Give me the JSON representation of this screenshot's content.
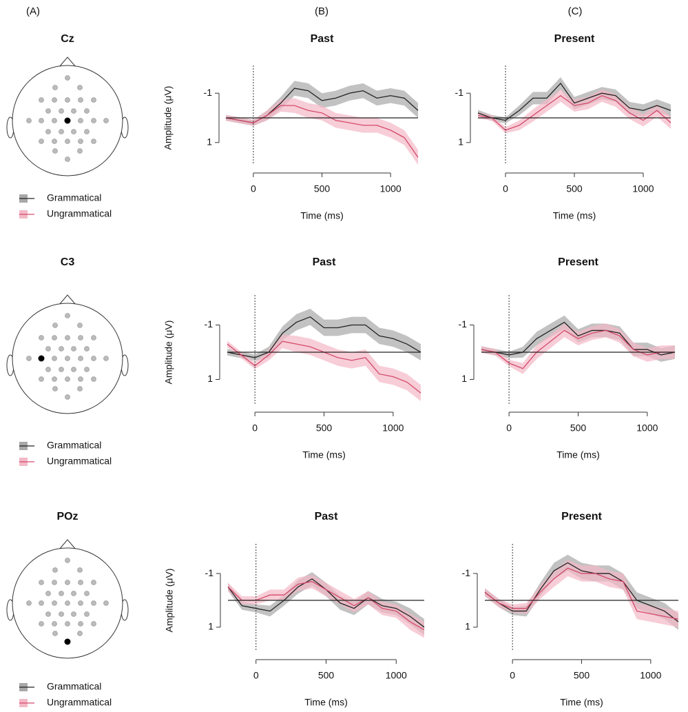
{
  "panels": [
    "(A)",
    "(B)",
    "(C)"
  ],
  "electrodes": [
    "Cz",
    "C3",
    "POz"
  ],
  "chart_data": [
    {
      "type": "line",
      "title": "Past",
      "xlabel": "Time (ms)",
      "ylabel": "Amplitude (μV)",
      "x": [
        -200,
        -100,
        0,
        100,
        200,
        300,
        400,
        500,
        600,
        700,
        800,
        900,
        1000,
        1100,
        1200
      ],
      "xlim": [
        -200,
        1200
      ],
      "xticks": [
        0,
        500,
        1000
      ],
      "ylim": [
        1.9,
        -1.9
      ],
      "yticks": [
        -1,
        1
      ],
      "series": [
        {
          "name": "Grammatical",
          "color": "#222222",
          "band_color": "#a8a8a8",
          "values": [
            0.0,
            0.1,
            0.2,
            -0.1,
            -0.6,
            -1.2,
            -1.1,
            -0.7,
            -0.8,
            -1.0,
            -1.1,
            -0.8,
            -0.9,
            -0.8,
            -0.3
          ],
          "errors": [
            0.12,
            0.12,
            0.12,
            0.2,
            0.25,
            0.3,
            0.3,
            0.3,
            0.3,
            0.3,
            0.3,
            0.3,
            0.3,
            0.3,
            0.3
          ]
        },
        {
          "name": "Ungrammatical",
          "color": "#d44a6a",
          "band_color": "#f3b8c6",
          "values": [
            0.0,
            0.1,
            0.2,
            -0.1,
            -0.5,
            -0.5,
            -0.3,
            -0.2,
            0.1,
            0.2,
            0.3,
            0.3,
            0.5,
            0.8,
            1.6
          ],
          "errors": [
            0.12,
            0.12,
            0.12,
            0.2,
            0.25,
            0.3,
            0.3,
            0.3,
            0.3,
            0.3,
            0.3,
            0.3,
            0.3,
            0.3,
            0.3
          ]
        }
      ]
    },
    {
      "type": "line",
      "title": "Present",
      "xlabel": "Time (ms)",
      "x": [
        -200,
        -100,
        0,
        100,
        200,
        300,
        400,
        500,
        600,
        700,
        800,
        900,
        1000,
        1100,
        1200
      ],
      "xlim": [
        -200,
        1200
      ],
      "xticks": [
        0,
        500,
        1000
      ],
      "ylim": [
        1.9,
        -1.9
      ],
      "yticks": [
        -1,
        1
      ],
      "series": [
        {
          "name": "Grammatical",
          "color": "#222222",
          "band_color": "#a8a8a8",
          "values": [
            -0.2,
            0.0,
            0.1,
            -0.3,
            -0.8,
            -0.8,
            -1.4,
            -0.6,
            -0.8,
            -1.0,
            -0.9,
            -0.4,
            -0.3,
            -0.5,
            -0.3
          ],
          "errors": [
            0.12,
            0.12,
            0.12,
            0.2,
            0.25,
            0.25,
            0.25,
            0.25,
            0.25,
            0.25,
            0.25,
            0.25,
            0.25,
            0.25,
            0.25
          ]
        },
        {
          "name": "Ungrammatical",
          "color": "#d44a6a",
          "band_color": "#f3b8c6",
          "values": [
            -0.1,
            0.0,
            0.5,
            0.3,
            -0.1,
            -0.5,
            -0.9,
            -0.5,
            -0.6,
            -0.9,
            -0.7,
            -0.2,
            0.1,
            -0.3,
            0.2
          ],
          "errors": [
            0.12,
            0.12,
            0.12,
            0.2,
            0.25,
            0.25,
            0.25,
            0.25,
            0.25,
            0.25,
            0.25,
            0.25,
            0.25,
            0.25,
            0.25
          ]
        }
      ]
    },
    {
      "type": "line",
      "title": "Past",
      "xlabel": "Time (ms)",
      "ylabel": "Amplitude (μV)",
      "x": [
        -200,
        -100,
        0,
        100,
        200,
        300,
        400,
        500,
        600,
        700,
        800,
        900,
        1000,
        1100,
        1200
      ],
      "xlim": [
        -200,
        1200
      ],
      "xticks": [
        0,
        500,
        1000
      ],
      "ylim": [
        1.9,
        -1.9
      ],
      "yticks": [
        -1,
        1
      ],
      "series": [
        {
          "name": "Grammatical",
          "color": "#222222",
          "band_color": "#a8a8a8",
          "values": [
            0.0,
            0.1,
            0.2,
            0.0,
            -0.7,
            -1.1,
            -1.3,
            -0.9,
            -0.9,
            -1.0,
            -1.0,
            -0.6,
            -0.5,
            -0.3,
            0.0
          ],
          "errors": [
            0.12,
            0.12,
            0.12,
            0.2,
            0.25,
            0.3,
            0.3,
            0.3,
            0.3,
            0.3,
            0.3,
            0.3,
            0.3,
            0.3,
            0.3
          ]
        },
        {
          "name": "Ungrammatical",
          "color": "#d44a6a",
          "band_color": "#f3b8c6",
          "values": [
            -0.3,
            0.1,
            0.5,
            0.1,
            -0.4,
            -0.3,
            -0.2,
            0.0,
            0.2,
            0.3,
            0.2,
            0.8,
            0.9,
            1.1,
            1.5
          ],
          "errors": [
            0.12,
            0.12,
            0.12,
            0.2,
            0.25,
            0.3,
            0.3,
            0.3,
            0.3,
            0.3,
            0.3,
            0.3,
            0.3,
            0.3,
            0.3
          ]
        }
      ]
    },
    {
      "type": "line",
      "title": "Present",
      "xlabel": "Time (ms)",
      "x": [
        -200,
        -100,
        0,
        100,
        200,
        300,
        400,
        500,
        600,
        700,
        800,
        900,
        1000,
        1100,
        1200
      ],
      "xlim": [
        -200,
        1200
      ],
      "xticks": [
        0,
        500,
        1000
      ],
      "ylim": [
        1.9,
        -1.9
      ],
      "yticks": [
        -1,
        1
      ],
      "series": [
        {
          "name": "Grammatical",
          "color": "#222222",
          "band_color": "#a8a8a8",
          "values": [
            -0.1,
            0.0,
            0.1,
            0.0,
            -0.5,
            -0.8,
            -1.1,
            -0.6,
            -0.8,
            -0.8,
            -0.7,
            -0.1,
            -0.1,
            0.1,
            0.0
          ],
          "errors": [
            0.12,
            0.12,
            0.12,
            0.2,
            0.25,
            0.25,
            0.25,
            0.25,
            0.25,
            0.25,
            0.25,
            0.25,
            0.25,
            0.25,
            0.25
          ]
        },
        {
          "name": "Ungrammatical",
          "color": "#d44a6a",
          "band_color": "#f3b8c6",
          "values": [
            -0.1,
            0.0,
            0.4,
            0.6,
            0.0,
            -0.4,
            -0.8,
            -0.5,
            -0.7,
            -0.8,
            -0.6,
            -0.1,
            0.1,
            0.0,
            0.0
          ],
          "errors": [
            0.12,
            0.12,
            0.12,
            0.2,
            0.25,
            0.25,
            0.25,
            0.25,
            0.25,
            0.25,
            0.25,
            0.25,
            0.25,
            0.25,
            0.25
          ]
        }
      ]
    },
    {
      "type": "line",
      "title": "Past",
      "xlabel": "Time (ms)",
      "ylabel": "Amplitude (μV)",
      "x": [
        -200,
        -100,
        0,
        100,
        200,
        300,
        400,
        500,
        600,
        700,
        800,
        900,
        1000,
        1100,
        1200
      ],
      "xlim": [
        -200,
        1200
      ],
      "xticks": [
        0,
        500,
        1000
      ],
      "ylim": [
        1.9,
        -1.9
      ],
      "yticks": [
        -1,
        1
      ],
      "series": [
        {
          "name": "Grammatical",
          "color": "#222222",
          "band_color": "#a8a8a8",
          "values": [
            -0.5,
            0.2,
            0.3,
            0.4,
            0.0,
            -0.5,
            -0.8,
            -0.4,
            0.1,
            0.3,
            -0.1,
            0.2,
            0.3,
            0.6,
            1.0
          ],
          "errors": [
            0.15,
            0.15,
            0.15,
            0.2,
            0.2,
            0.25,
            0.25,
            0.25,
            0.25,
            0.25,
            0.25,
            0.25,
            0.25,
            0.3,
            0.3
          ]
        },
        {
          "name": "Ungrammatical",
          "color": "#d44a6a",
          "band_color": "#f3b8c6",
          "values": [
            -0.5,
            0.0,
            0.0,
            -0.2,
            -0.2,
            -0.6,
            -0.7,
            -0.4,
            -0.1,
            0.2,
            -0.1,
            0.3,
            0.4,
            0.8,
            1.1
          ],
          "errors": [
            0.15,
            0.15,
            0.15,
            0.2,
            0.2,
            0.25,
            0.25,
            0.25,
            0.25,
            0.25,
            0.25,
            0.25,
            0.25,
            0.3,
            0.3
          ]
        }
      ]
    },
    {
      "type": "line",
      "title": "Present",
      "xlabel": "Time (ms)",
      "x": [
        -200,
        -100,
        0,
        100,
        200,
        300,
        400,
        500,
        600,
        700,
        800,
        900,
        1000,
        1100,
        1200
      ],
      "xlim": [
        -200,
        1200
      ],
      "xticks": [
        0,
        500,
        1000
      ],
      "ylim": [
        1.9,
        -1.9
      ],
      "yticks": [
        -1,
        1
      ],
      "series": [
        {
          "name": "Grammatical",
          "color": "#222222",
          "band_color": "#a8a8a8",
          "values": [
            -0.3,
            0.1,
            0.4,
            0.4,
            -0.4,
            -1.1,
            -1.4,
            -1.1,
            -1.0,
            -1.0,
            -0.7,
            0.0,
            0.2,
            0.4,
            0.8
          ],
          "errors": [
            0.15,
            0.15,
            0.15,
            0.2,
            0.25,
            0.3,
            0.3,
            0.3,
            0.3,
            0.3,
            0.3,
            0.3,
            0.3,
            0.3,
            0.3
          ]
        },
        {
          "name": "Ungrammatical",
          "color": "#d44a6a",
          "band_color": "#f3b8c6",
          "values": [
            -0.3,
            0.1,
            0.3,
            0.3,
            -0.3,
            -0.8,
            -1.2,
            -1.0,
            -1.0,
            -0.8,
            -0.7,
            0.4,
            0.5,
            0.6,
            0.7
          ],
          "errors": [
            0.15,
            0.15,
            0.15,
            0.2,
            0.25,
            0.3,
            0.3,
            0.3,
            0.3,
            0.3,
            0.3,
            0.3,
            0.3,
            0.3,
            0.3
          ]
        }
      ]
    }
  ]
}
